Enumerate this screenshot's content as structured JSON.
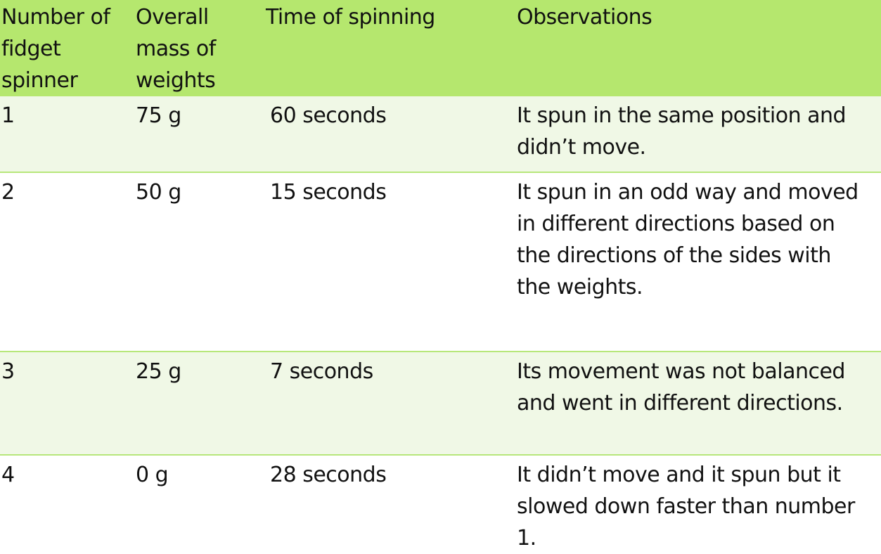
{
  "table": {
    "headers": {
      "number": "Number of\nfidget\nspinner",
      "mass": "Overall\nmass of\nweights",
      "time": "Time of spinning",
      "observations": "Observations"
    },
    "rows": [
      {
        "number": "1",
        "mass": "75 g",
        "time": "60 seconds",
        "observations": " It spun in the same position and\ndidn’t move."
      },
      {
        "number": "2",
        "mass": "50 g",
        "time": "15 seconds",
        "observations": " It spun in an odd way and moved\nin different directions based on\nthe directions of the sides with\nthe weights."
      },
      {
        "number": "3",
        "mass": "25 g",
        "time": "7 seconds",
        "observations": " Its movement was not balanced\nand went in different directions."
      },
      {
        "number": "4",
        "mass": "0 g",
        "time": "28 seconds",
        "observations": " It didn’t move and it spun but it\nslowed down faster than number\n1."
      }
    ],
    "colors": {
      "header_bg": "#b5e76e",
      "band_bg": "#f0f8e6",
      "row_border": "#b7e77a"
    }
  }
}
